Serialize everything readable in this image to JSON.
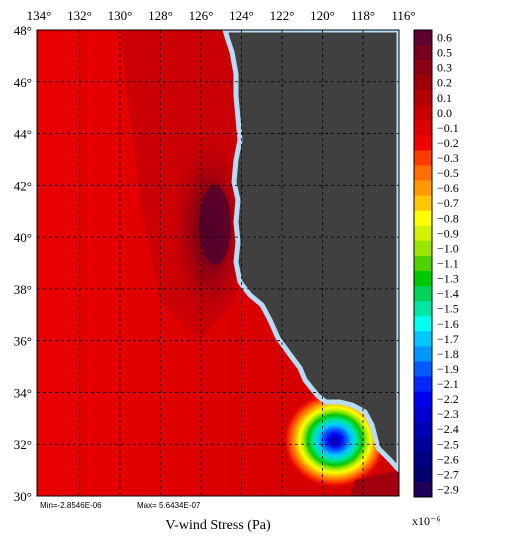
{
  "map": {
    "title": "V-wind Stress (Pa)",
    "stats": {
      "min_label": "Min=-2.8546E-06",
      "max_label": "Max= 5.6434E-07"
    },
    "lon_labels": [
      "134°",
      "132°",
      "130°",
      "128°",
      "126°",
      "124°",
      "122°",
      "120°",
      "118°",
      "116°"
    ],
    "lat_labels": [
      "48°",
      "46°",
      "44°",
      "42°",
      "40°",
      "38°",
      "36°",
      "34°",
      "32°",
      "30°"
    ],
    "colors": {
      "land": "#404040",
      "coast_shelf": "#b8dcf5",
      "ocean_base": "#d90000",
      "grid": "#000000"
    }
  },
  "colorbar": {
    "multiplier_label": "x10⁻⁶",
    "levels": [
      {
        "label": "0.6",
        "color": "#600030"
      },
      {
        "label": "0.5",
        "color": "#78001e"
      },
      {
        "label": "0.3",
        "color": "#8c0014"
      },
      {
        "label": "0.2",
        "color": "#a0000a"
      },
      {
        "label": "0.1",
        "color": "#b40005"
      },
      {
        "label": "0.0",
        "color": "#c80000"
      },
      {
        "label": "−0.1",
        "color": "#dc0000"
      },
      {
        "label": "−0.2",
        "color": "#f00000"
      },
      {
        "label": "−0.3",
        "color": "#ff3c00"
      },
      {
        "label": "−0.5",
        "color": "#ff6e00"
      },
      {
        "label": "−0.6",
        "color": "#ff9b00"
      },
      {
        "label": "−0.7",
        "color": "#ffc800"
      },
      {
        "label": "−0.8",
        "color": "#ffff00"
      },
      {
        "label": "−0.9",
        "color": "#d2f000"
      },
      {
        "label": "−1.0",
        "color": "#9be600"
      },
      {
        "label": "−1.1",
        "color": "#50d200"
      },
      {
        "label": "−1.3",
        "color": "#00c800"
      },
      {
        "label": "−1.4",
        "color": "#00d25a"
      },
      {
        "label": "−1.5",
        "color": "#00e6a0"
      },
      {
        "label": "−1.6",
        "color": "#00fff0"
      },
      {
        "label": "−1.7",
        "color": "#00c8ff"
      },
      {
        "label": "−1.8",
        "color": "#0096ff"
      },
      {
        "label": "−1.9",
        "color": "#005aff"
      },
      {
        "label": "−2.1",
        "color": "#0028ff"
      },
      {
        "label": "−2.2",
        "color": "#0000f0"
      },
      {
        "label": "−2.3",
        "color": "#0000d2"
      },
      {
        "label": "−2.4",
        "color": "#0000b4"
      },
      {
        "label": "−2.5",
        "color": "#00009b"
      },
      {
        "label": "−2.6",
        "color": "#000082"
      },
      {
        "label": "−2.7",
        "color": "#00006e"
      },
      {
        "label": "−2.9",
        "color": "#1e005a"
      }
    ]
  }
}
